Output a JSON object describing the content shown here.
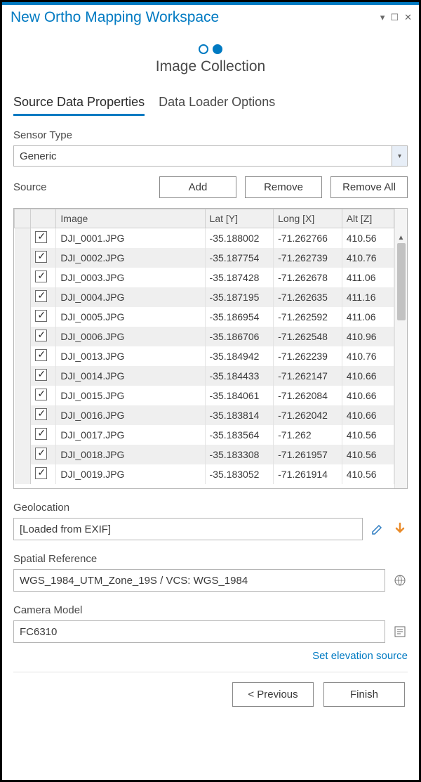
{
  "window": {
    "title": "New Ortho Mapping Workspace",
    "accent_color": "#007ac2"
  },
  "stepper": {
    "total": 2,
    "active_index": 1,
    "label": "Image Collection"
  },
  "tabs": [
    {
      "label": "Source Data Properties",
      "active": true
    },
    {
      "label": "Data Loader Options",
      "active": false
    }
  ],
  "sensor_type": {
    "label": "Sensor Type",
    "value": "Generic"
  },
  "source": {
    "label": "Source",
    "buttons": {
      "add": "Add",
      "remove": "Remove",
      "remove_all": "Remove All"
    }
  },
  "table": {
    "columns": [
      "",
      "",
      "Image",
      "Lat [Y]",
      "Long [X]",
      "Alt [Z]"
    ],
    "rows": [
      {
        "checked": true,
        "image": "DJI_0001.JPG",
        "lat": "-35.188002",
        "long": "-71.262766",
        "alt": "410.56"
      },
      {
        "checked": true,
        "image": "DJI_0002.JPG",
        "lat": "-35.187754",
        "long": "-71.262739",
        "alt": "410.76"
      },
      {
        "checked": true,
        "image": "DJI_0003.JPG",
        "lat": "-35.187428",
        "long": "-71.262678",
        "alt": "411.06"
      },
      {
        "checked": true,
        "image": "DJI_0004.JPG",
        "lat": "-35.187195",
        "long": "-71.262635",
        "alt": "411.16"
      },
      {
        "checked": true,
        "image": "DJI_0005.JPG",
        "lat": "-35.186954",
        "long": "-71.262592",
        "alt": "411.06"
      },
      {
        "checked": true,
        "image": "DJI_0006.JPG",
        "lat": "-35.186706",
        "long": "-71.262548",
        "alt": "410.96"
      },
      {
        "checked": true,
        "image": "DJI_0013.JPG",
        "lat": "-35.184942",
        "long": "-71.262239",
        "alt": "410.76"
      },
      {
        "checked": true,
        "image": "DJI_0014.JPG",
        "lat": "-35.184433",
        "long": "-71.262147",
        "alt": "410.66"
      },
      {
        "checked": true,
        "image": "DJI_0015.JPG",
        "lat": "-35.184061",
        "long": "-71.262084",
        "alt": "410.66"
      },
      {
        "checked": true,
        "image": "DJI_0016.JPG",
        "lat": "-35.183814",
        "long": "-71.262042",
        "alt": "410.66"
      },
      {
        "checked": true,
        "image": "DJI_0017.JPG",
        "lat": "-35.183564",
        "long": "-71.262",
        "alt": "410.56"
      },
      {
        "checked": true,
        "image": "DJI_0018.JPG",
        "lat": "-35.183308",
        "long": "-71.261957",
        "alt": "410.56"
      },
      {
        "checked": true,
        "image": "DJI_0019.JPG",
        "lat": "-35.183052",
        "long": "-71.261914",
        "alt": "410.56"
      }
    ]
  },
  "geolocation": {
    "label": "Geolocation",
    "value": "[Loaded from EXIF]"
  },
  "spatial_reference": {
    "label": "Spatial Reference",
    "value": "WGS_1984_UTM_Zone_19S / VCS: WGS_1984"
  },
  "camera_model": {
    "label": "Camera Model",
    "value": "FC6310"
  },
  "elevation_link": "Set elevation source",
  "footer": {
    "previous": "< Previous",
    "finish": "Finish"
  },
  "colors": {
    "alt_row": "#efefef",
    "border": "#b5b5b5",
    "orange": "#e98b2a"
  }
}
